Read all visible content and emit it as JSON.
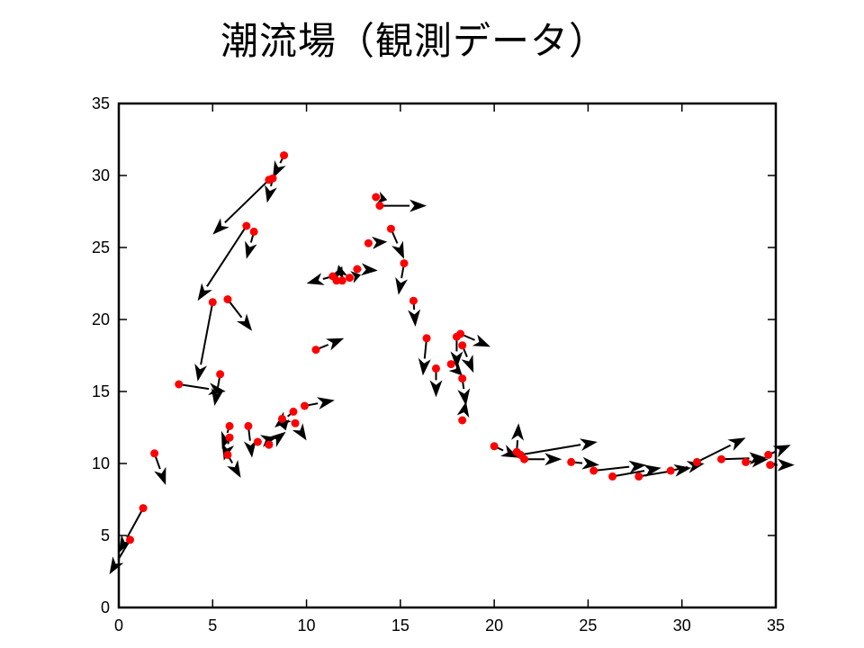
{
  "chart_data": {
    "type": "scatter",
    "title": "潮流場（観測データ）",
    "xlim": [
      0,
      35
    ],
    "ylim": [
      0,
      35
    ],
    "x_ticks": [
      "0",
      "5",
      "10",
      "15",
      "20",
      "25",
      "30",
      "35"
    ],
    "y_ticks": [
      "0",
      "5",
      "10",
      "15",
      "20",
      "25",
      "30",
      "35"
    ],
    "grid": false,
    "point_color": "#ff0000",
    "arrow_color": "#000000",
    "vectors": [
      {
        "x": 0.6,
        "y": 4.7,
        "u": -1.1,
        "v": -2.4
      },
      {
        "x": 1.3,
        "y": 6.9,
        "u": -1.3,
        "v": -3.1
      },
      {
        "x": 1.9,
        "y": 10.7,
        "u": 0.6,
        "v": -2.2
      },
      {
        "x": 3.2,
        "y": 15.5,
        "u": 2.5,
        "v": -0.5
      },
      {
        "x": 5.0,
        "y": 21.2,
        "u": -0.8,
        "v": -5.5
      },
      {
        "x": 5.4,
        "y": 16.2,
        "u": -0.3,
        "v": -2.2
      },
      {
        "x": 5.8,
        "y": 21.4,
        "u": 1.3,
        "v": -2.2
      },
      {
        "x": 5.8,
        "y": 10.6,
        "u": 0.7,
        "v": -1.6
      },
      {
        "x": 5.9,
        "y": 11.8,
        "u": -0.3,
        "v": -1.6
      },
      {
        "x": 5.9,
        "y": 12.6,
        "u": -0.4,
        "v": -1.6
      },
      {
        "x": 6.8,
        "y": 26.5,
        "u": -2.6,
        "v": -5.2
      },
      {
        "x": 6.9,
        "y": 12.6,
        "u": 0.2,
        "v": -2.2
      },
      {
        "x": 7.2,
        "y": 26.1,
        "u": -0.4,
        "v": -1.9
      },
      {
        "x": 7.4,
        "y": 11.5,
        "u": 1.0,
        "v": 0.3
      },
      {
        "x": 8.0,
        "y": 11.3,
        "u": 0.9,
        "v": 0.9
      },
      {
        "x": 8.0,
        "y": 29.7,
        "u": -3.0,
        "v": -3.8
      },
      {
        "x": 8.2,
        "y": 29.8,
        "u": -0.3,
        "v": -1.7
      },
      {
        "x": 8.7,
        "y": 13.1,
        "u": 0.2,
        "v": -0.8
      },
      {
        "x": 8.8,
        "y": 31.4,
        "u": -0.6,
        "v": -1.6
      },
      {
        "x": 9.3,
        "y": 13.6,
        "u": -1.0,
        "v": -1.1
      },
      {
        "x": 9.4,
        "y": 12.8,
        "u": 0.6,
        "v": -1.2
      },
      {
        "x": 9.9,
        "y": 14.0,
        "u": 1.6,
        "v": 0.4
      },
      {
        "x": 10.5,
        "y": 17.9,
        "u": 1.5,
        "v": 0.8
      },
      {
        "x": 11.4,
        "y": 23.0,
        "u": -1.4,
        "v": -0.5
      },
      {
        "x": 11.6,
        "y": 22.7,
        "u": 0.3,
        "v": 1.0
      },
      {
        "x": 11.9,
        "y": 22.7,
        "u": -0.2,
        "v": 1.1
      },
      {
        "x": 12.3,
        "y": 22.9,
        "u": 0.6,
        "v": 0.2
      },
      {
        "x": 12.7,
        "y": 23.5,
        "u": 1.1,
        "v": -0.1
      },
      {
        "x": 13.3,
        "y": 25.3,
        "u": 1.0,
        "v": 0.1
      },
      {
        "x": 13.7,
        "y": 28.5,
        "u": 0.6,
        "v": -0.2
      },
      {
        "x": 13.9,
        "y": 27.9,
        "u": 2.5,
        "v": 0.0
      },
      {
        "x": 14.5,
        "y": 26.3,
        "u": 0.7,
        "v": -2.1
      },
      {
        "x": 15.2,
        "y": 23.9,
        "u": -0.3,
        "v": -2.2
      },
      {
        "x": 15.7,
        "y": 21.3,
        "u": 0.1,
        "v": -1.8
      },
      {
        "x": 16.4,
        "y": 18.7,
        "u": -0.2,
        "v": -2.6
      },
      {
        "x": 16.9,
        "y": 16.6,
        "u": 0.0,
        "v": -2.0
      },
      {
        "x": 17.7,
        "y": 16.9,
        "u": 0.6,
        "v": -0.8
      },
      {
        "x": 18.0,
        "y": 18.8,
        "u": 0.0,
        "v": -2.2
      },
      {
        "x": 18.2,
        "y": 19.0,
        "u": 1.6,
        "v": -0.9
      },
      {
        "x": 18.3,
        "y": 15.9,
        "u": 0.2,
        "v": -1.9
      },
      {
        "x": 18.3,
        "y": 18.2,
        "u": 0.6,
        "v": -1.9
      },
      {
        "x": 18.3,
        "y": 13.0,
        "u": 0.2,
        "v": 1.3
      },
      {
        "x": 20.0,
        "y": 11.2,
        "u": 1.3,
        "v": -0.8
      },
      {
        "x": 21.2,
        "y": 10.8,
        "u": 0.1,
        "v": 2.0
      },
      {
        "x": 21.4,
        "y": 10.6,
        "u": 4.1,
        "v": 0.9
      },
      {
        "x": 21.6,
        "y": 10.3,
        "u": 2.0,
        "v": 0.0
      },
      {
        "x": 24.1,
        "y": 10.1,
        "u": 1.5,
        "v": -0.2
      },
      {
        "x": 25.3,
        "y": 9.5,
        "u": 2.8,
        "v": 0.4
      },
      {
        "x": 26.3,
        "y": 9.1,
        "u": 2.6,
        "v": 0.6
      },
      {
        "x": 27.7,
        "y": 9.1,
        "u": 2.8,
        "v": 0.6
      },
      {
        "x": 29.4,
        "y": 9.5,
        "u": 1.8,
        "v": 0.5
      },
      {
        "x": 30.8,
        "y": 10.1,
        "u": 2.6,
        "v": 1.7
      },
      {
        "x": 32.1,
        "y": 10.3,
        "u": 2.4,
        "v": 0.1
      },
      {
        "x": 33.4,
        "y": 10.1,
        "u": 1.2,
        "v": 0.2
      },
      {
        "x": 34.6,
        "y": 10.6,
        "u": 1.2,
        "v": 0.7
      },
      {
        "x": 34.7,
        "y": 9.9,
        "u": 1.3,
        "v": 0.0
      }
    ]
  }
}
